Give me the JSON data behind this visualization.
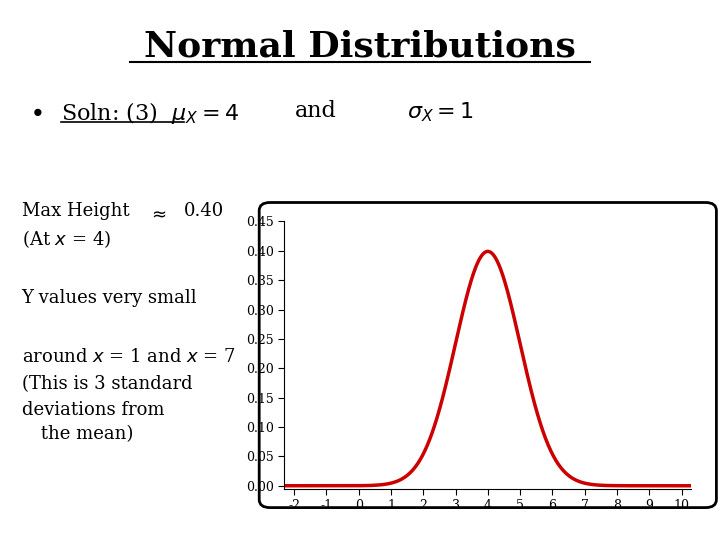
{
  "title": "Normal Distributions",
  "mu": 4,
  "sigma": 1,
  "x_min": -2,
  "x_max": 10,
  "y_min": 0,
  "y_max": 0.45,
  "curve_color": "#cc0000",
  "curve_linewidth": 2.5,
  "x_ticks": [
    -2,
    -1,
    0,
    1,
    2,
    3,
    4,
    5,
    6,
    7,
    8,
    9,
    10
  ],
  "y_ticks": [
    0.0,
    0.05,
    0.1,
    0.15,
    0.2,
    0.25,
    0.3,
    0.35,
    0.4,
    0.45
  ],
  "annotation_max_height": "Max Height",
  "annotation_approx_val": "0.40",
  "annotation_at_x": "(At x = 4)",
  "annotation_y_small": "Y values very small",
  "annotation_around": "around x = 1 and x = 7",
  "annotation_std1": "(This is 3 standard",
  "annotation_std2": "deviations from",
  "annotation_std3": " the mean)"
}
